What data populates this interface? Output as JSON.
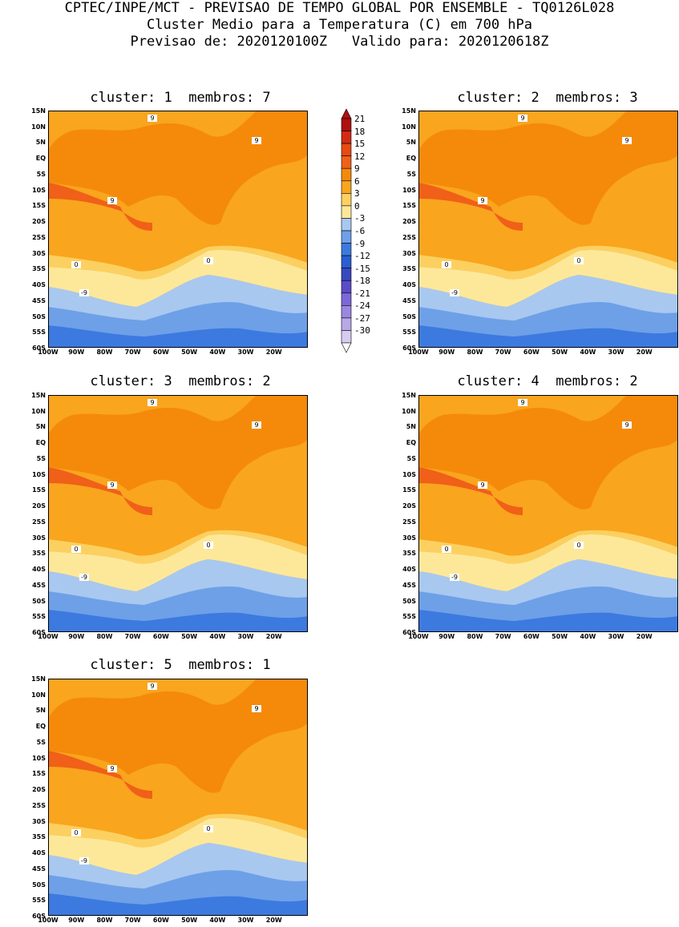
{
  "header": {
    "line1": "CPTEC/INPE/MCT - PREVISAO DE TEMPO GLOBAL POR ENSEMBLE - TQ0126L028",
    "line2": "Cluster Medio para a Temperatura (C) em 700 hPa",
    "line3": "Previsao de: 2020120100Z   Valido para: 2020120618Z"
  },
  "panels": [
    {
      "title": "cluster: 1  membros: 7"
    },
    {
      "title": "cluster: 2  membros: 3"
    },
    {
      "title": "cluster: 3  membros: 2"
    },
    {
      "title": "cluster: 4  membros: 2"
    },
    {
      "title": "cluster: 5  membros: 1"
    }
  ],
  "lat_labels": [
    "15N",
    "10N",
    "5N",
    "EQ",
    "5S",
    "10S",
    "15S",
    "20S",
    "25S",
    "30S",
    "35S",
    "40S",
    "45S",
    "50S",
    "55S",
    "60S"
  ],
  "lon_labels": [
    "100W",
    "90W",
    "80W",
    "70W",
    "60W",
    "50W",
    "40W",
    "30W",
    "20W"
  ],
  "colorbar": {
    "levels": [
      "21",
      "18",
      "15",
      "12",
      "9",
      "6",
      "3",
      "0",
      "-3",
      "-6",
      "-9",
      "-12",
      "-15",
      "-18",
      "-21",
      "-24",
      "-27",
      "-30"
    ],
    "colors": [
      "#b01010",
      "#d42a14",
      "#e84a12",
      "#f06018",
      "#f58a0a",
      "#f9a51e",
      "#fcd060",
      "#fde89a",
      "#a8c8f0",
      "#6ea0e8",
      "#3c7ae0",
      "#2a5ed2",
      "#3848c0",
      "#5a4cc8",
      "#7c68d8",
      "#9a88e0",
      "#b8a8e8",
      "#d6ccf2"
    ]
  },
  "contour_labels": {
    "warm": "9",
    "zero": "0",
    "cold": "-9"
  }
}
